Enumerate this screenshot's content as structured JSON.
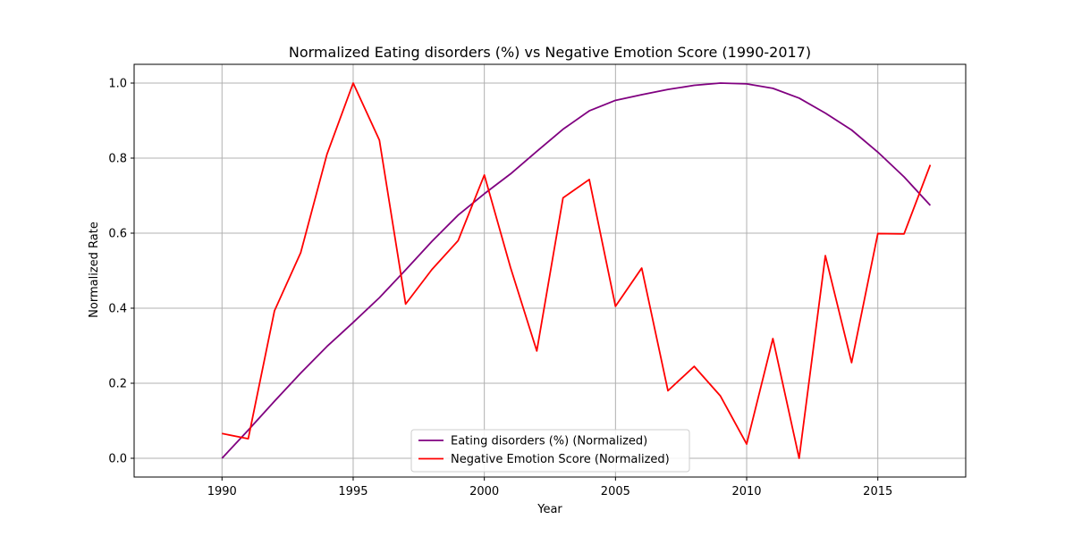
{
  "chart_data": {
    "type": "line",
    "title": "Normalized Eating disorders (%) vs Negative Emotion Score (1990-2017)",
    "xlabel": "Year",
    "ylabel": "Normalized Rate",
    "x": [
      1990,
      1991,
      1992,
      1993,
      1994,
      1995,
      1996,
      1997,
      1998,
      1999,
      2000,
      2001,
      2002,
      2003,
      2004,
      2005,
      2006,
      2007,
      2008,
      2009,
      2010,
      2011,
      2012,
      2013,
      2014,
      2015,
      2016,
      2017
    ],
    "xlim": [
      1986.65,
      2018.35
    ],
    "ylim": [
      -0.05,
      1.05
    ],
    "x_ticks": [
      1990,
      1995,
      2000,
      2005,
      2010,
      2015
    ],
    "y_ticks": [
      0.0,
      0.2,
      0.4,
      0.6,
      0.8,
      1.0
    ],
    "x_tick_labels": [
      "1990",
      "1995",
      "2000",
      "2005",
      "2010",
      "2015"
    ],
    "y_tick_labels": [
      "0.0",
      "0.2",
      "0.4",
      "0.6",
      "0.8",
      "1.0"
    ],
    "grid": true,
    "legend_position": "bottom-center",
    "series": [
      {
        "name": "Eating disorders (%) (Normalized)",
        "color": "#800080",
        "values": [
          0.0,
          0.075,
          0.152,
          0.227,
          0.298,
          0.362,
          0.428,
          0.502,
          0.578,
          0.648,
          0.705,
          0.758,
          0.818,
          0.877,
          0.926,
          0.954,
          0.969,
          0.983,
          0.994,
          1.0,
          0.998,
          0.986,
          0.96,
          0.92,
          0.875,
          0.816,
          0.75,
          0.674
        ]
      },
      {
        "name": "Negative Emotion Score (Normalized)",
        "color": "#ff0000",
        "values": [
          0.066,
          0.052,
          0.393,
          0.548,
          0.81,
          1.0,
          0.848,
          0.411,
          0.503,
          0.58,
          0.755,
          0.508,
          0.286,
          0.694,
          0.743,
          0.405,
          0.507,
          0.18,
          0.245,
          0.166,
          0.038,
          0.319,
          0.0,
          0.54,
          0.255,
          0.599,
          0.598,
          0.782
        ]
      }
    ]
  }
}
